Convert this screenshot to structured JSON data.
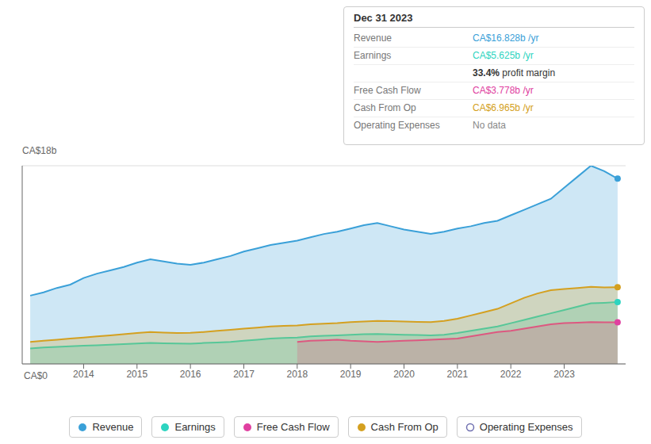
{
  "chart_data": {
    "type": "area",
    "annotations": [
      "CA$18b",
      "CA$0"
    ],
    "x": [
      2013.0,
      2013.25,
      2013.5,
      2013.75,
      2014.0,
      2014.25,
      2014.5,
      2014.75,
      2015.0,
      2015.25,
      2015.5,
      2015.75,
      2016.0,
      2016.25,
      2016.5,
      2016.75,
      2017.0,
      2017.25,
      2017.5,
      2017.75,
      2018.0,
      2018.25,
      2018.5,
      2018.75,
      2019.0,
      2019.25,
      2019.5,
      2019.75,
      2020.0,
      2020.25,
      2020.5,
      2020.75,
      2021.0,
      2021.25,
      2021.5,
      2021.75,
      2022.0,
      2022.25,
      2022.5,
      2022.75,
      2023.0,
      2023.25,
      2023.5,
      2023.75,
      2024.0
    ],
    "series": [
      {
        "name": "Revenue",
        "color": "#3aa0d8",
        "values": [
          6.2,
          6.5,
          6.9,
          7.2,
          7.8,
          8.2,
          8.5,
          8.8,
          9.2,
          9.5,
          9.3,
          9.1,
          9.0,
          9.2,
          9.5,
          9.8,
          10.2,
          10.5,
          10.8,
          11.0,
          11.2,
          11.5,
          11.8,
          12.0,
          12.3,
          12.6,
          12.8,
          12.5,
          12.2,
          12.0,
          11.8,
          12.0,
          12.3,
          12.5,
          12.8,
          13.0,
          13.5,
          14.0,
          14.5,
          15.0,
          16.0,
          17.0,
          18.0,
          17.5,
          16.828
        ]
      },
      {
        "name": "Earnings",
        "color": "#2dd4c0",
        "values": [
          1.4,
          1.5,
          1.55,
          1.6,
          1.65,
          1.7,
          1.75,
          1.8,
          1.85,
          1.9,
          1.88,
          1.85,
          1.83,
          1.9,
          1.95,
          2.0,
          2.1,
          2.2,
          2.3,
          2.35,
          2.4,
          2.5,
          2.55,
          2.6,
          2.65,
          2.7,
          2.72,
          2.68,
          2.65,
          2.62,
          2.6,
          2.65,
          2.8,
          3.0,
          3.2,
          3.4,
          3.7,
          4.0,
          4.3,
          4.6,
          4.9,
          5.2,
          5.5,
          5.55,
          5.625
        ]
      },
      {
        "name": "Free Cash Flow",
        "color": "#e040a0",
        "values": [
          null,
          null,
          null,
          null,
          null,
          null,
          null,
          null,
          null,
          null,
          null,
          null,
          null,
          null,
          null,
          null,
          null,
          null,
          null,
          null,
          2.0,
          2.1,
          2.15,
          2.2,
          2.1,
          2.05,
          2.0,
          2.05,
          2.1,
          2.15,
          2.2,
          2.25,
          2.3,
          2.5,
          2.7,
          2.9,
          3.0,
          3.2,
          3.4,
          3.6,
          3.7,
          3.75,
          3.8,
          3.78,
          3.778
        ]
      },
      {
        "name": "Cash From Op",
        "color": "#d4a020",
        "values": [
          2.0,
          2.1,
          2.2,
          2.3,
          2.4,
          2.5,
          2.6,
          2.7,
          2.8,
          2.9,
          2.85,
          2.8,
          2.82,
          2.9,
          3.0,
          3.1,
          3.2,
          3.3,
          3.4,
          3.45,
          3.5,
          3.6,
          3.65,
          3.7,
          3.8,
          3.85,
          3.9,
          3.88,
          3.85,
          3.82,
          3.8,
          3.9,
          4.1,
          4.4,
          4.7,
          5.0,
          5.5,
          6.0,
          6.4,
          6.7,
          6.8,
          6.9,
          7.0,
          6.95,
          6.965
        ]
      },
      {
        "name": "Operating Expenses",
        "color": "#7070b0",
        "marker": "hollow",
        "values": [
          null,
          null,
          null,
          null,
          null,
          null,
          null,
          null,
          null,
          null,
          null,
          null,
          null,
          null,
          null,
          null,
          null,
          null,
          null,
          null,
          null,
          null,
          null,
          null,
          null,
          null,
          null,
          null,
          null,
          null,
          null,
          null,
          null,
          null,
          null,
          null,
          null,
          null,
          null,
          null,
          null,
          null,
          null,
          null,
          null
        ]
      }
    ],
    "xlim": [
      2012.85,
      2024.15
    ],
    "xticks": [
      2014,
      2015,
      2016,
      2017,
      2018,
      2019,
      2020,
      2021,
      2022,
      2023
    ],
    "ylim": [
      0,
      18
    ],
    "yticks": [
      6,
      12,
      18
    ],
    "grid": true,
    "tick_labels": "x",
    "info_box": {
      "title": "Dec 31 2023",
      "rows": [
        {
          "label": "Revenue",
          "value": "CA$16.828b /yr",
          "color": "#3aa0d8"
        },
        {
          "label": "Earnings",
          "value": "CA$5.625b /yr",
          "color": "#2dd4c0"
        },
        {
          "bold": "33.4%",
          "value": "profit margin"
        },
        {
          "label": "Free Cash Flow",
          "value": "CA$3.778b /yr",
          "color": "#e040a0"
        },
        {
          "label": "Cash From Op",
          "value": "CA$6.965b /yr",
          "color": "#d4a020"
        },
        {
          "label": "Operating Expenses",
          "value": "No data",
          "color": "#888888"
        }
      ]
    }
  }
}
